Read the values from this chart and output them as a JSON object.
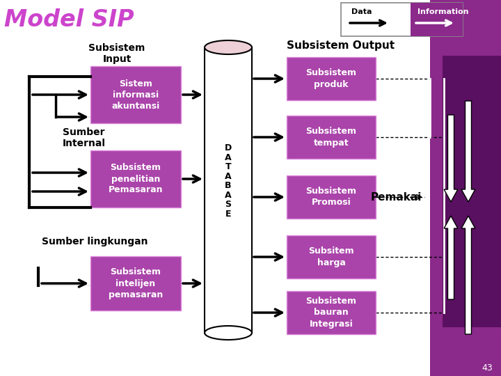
{
  "title": "Model SIP",
  "title_color": "#CC44CC",
  "title_fontsize": 24,
  "bg_color": "#FFFFFF",
  "purple_box_color": "#AA44AA",
  "purple_sidebar_light": "#8B2A8B",
  "purple_sidebar_dark": "#5A1060",
  "text_white": "#FFFFFF",
  "text_black": "#000000",
  "input_boxes": [
    "Sistem\ninformasi\nakuntansi",
    "Subsistem\npenelitian\nPemasaran",
    "Subsistem\nintelijen\npemasaran"
  ],
  "output_boxes": [
    "Subsistem\nproduk",
    "Subsistem\ntempat",
    "Subsistem\nPromosi",
    "Subsitem\nharga",
    "Subsistem\nbauran\nIntegrasi"
  ],
  "output_label": "Subsistem Output",
  "database_text": "D\nA\nT\nA\nB\nA\nS\nE",
  "pemakai_text": "Pemakai",
  "data_label": "Data",
  "info_label": "Information",
  "page_number": "43",
  "subsistem_input_label": "Subsistem\nInput",
  "sumber_internal_label": "Sumber\nInternal",
  "sumber_lingkungan_label": "Sumber lingkungan"
}
